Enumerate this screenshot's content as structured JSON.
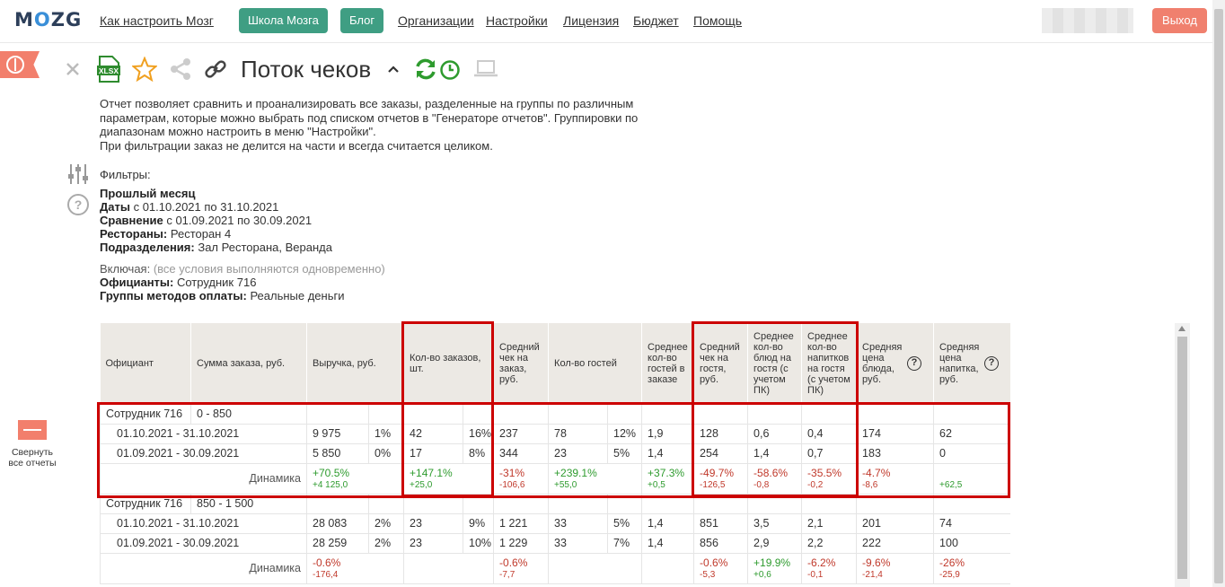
{
  "nav": {
    "logo": "MOZG",
    "links": [
      "Как настроить Мозг",
      "Организации",
      "Настройки",
      "Лицензия",
      "Бюджет",
      "Помощь"
    ],
    "btn_school": "Школа Мозга",
    "btn_blog": "Блог",
    "logout": "Выход"
  },
  "report": {
    "title": "Поток чеков",
    "xlsx": "XLSX",
    "description": [
      "Отчет позволяет сравнить и проанализировать все заказы, разделенные на группы по различным",
      "параметрам, которые можно выбрать под списком отчетов в \"Генераторе отчетов\". Группировки по",
      "диапазонам можно настроить в меню \"Настройки\".",
      "При фильтрации заказ не делится на части и всегда считается целиком."
    ]
  },
  "filters": {
    "label": "Фильтры:",
    "period": "Прошлый месяц",
    "dates_label": "Даты",
    "dates_value": "с 01.10.2021 по 31.10.2021",
    "compare_label": "Сравнение",
    "compare_value": "с 01.09.2021 по 30.09.2021",
    "restaurants_label": "Рестораны:",
    "restaurants_value": "Ресторан 4",
    "divisions_label": "Подразделения:",
    "divisions_value": "Зал Ресторана, Веранда",
    "include_label": "Включая:",
    "include_note": "(все условия выполняются одновременно)",
    "waiters_label": "Официанты:",
    "waiters_value": "Сотрудник 716",
    "payment_label": "Группы методов оплаты:",
    "payment_value": "Реальные деньги"
  },
  "collapse": {
    "label1": "Свернуть",
    "label2": "все отчеты"
  },
  "table": {
    "headers": {
      "waiter": "Официант",
      "order_sum": "Сумма заказа, руб.",
      "revenue": "Выручка, руб.",
      "orders": "Кол-во заказов, шт.",
      "avg_check": "Средний чек на заказ, руб.",
      "guests": "Кол-во гостей",
      "avg_guests": "Среднее кол-во гостей в заказе",
      "avg_guest_check": "Средний чек на гостя, руб.",
      "avg_dishes": "Среднее кол-во блюд на гостя (с учетом ПК)",
      "avg_drinks": "Среднее кол-во напитков на гостя (с учетом ПК)",
      "avg_dish_price": "Средняя цена блюда, руб.",
      "avg_drink_price": "Средняя цена напитка, руб."
    },
    "dyn_label": "Динамика",
    "groups": [
      {
        "waiter": "Сотрудник 716",
        "range": "0 - 850",
        "rows": [
          {
            "period": "01.10.2021 - 31.10.2021",
            "revenue": "9 975",
            "revenue_pct": "1%",
            "orders": "42",
            "orders_pct": "16%",
            "avg_check": "237",
            "guests": "78",
            "guests_pct": "12%",
            "avg_guests": "1,9",
            "avg_guest_check": "128",
            "avg_dishes": "0,6",
            "avg_drinks": "0,4",
            "avg_dish_price": "174",
            "avg_drink_price": "62"
          },
          {
            "period": "01.09.2021 - 30.09.2021",
            "revenue": "5 850",
            "revenue_pct": "0%",
            "orders": "17",
            "orders_pct": "8%",
            "avg_check": "344",
            "guests": "23",
            "guests_pct": "5%",
            "avg_guests": "1,4",
            "avg_guest_check": "254",
            "avg_dishes": "1,4",
            "avg_drinks": "0,7",
            "avg_dish_price": "183",
            "avg_drink_price": "0"
          }
        ],
        "dyn": {
          "revenue": [
            "+70.5%",
            "+4 125,0",
            "pos"
          ],
          "orders": [
            "+147.1%",
            "+25,0",
            "pos"
          ],
          "avg_check": [
            "-31%",
            "-106,6",
            "neg"
          ],
          "guests": [
            "+239.1%",
            "+55,0",
            "pos"
          ],
          "avg_guests": [
            "+37.3%",
            "+0,5",
            "pos"
          ],
          "avg_guest_check": [
            "-49.7%",
            "-126,5",
            "neg"
          ],
          "avg_dishes": [
            "-58.6%",
            "-0,8",
            "neg"
          ],
          "avg_drinks": [
            "-35.5%",
            "-0,2",
            "neg"
          ],
          "avg_dish_price": [
            "-4.7%",
            "-8,6",
            "neg"
          ],
          "avg_drink_price": [
            "",
            "+62,5",
            "pos"
          ]
        }
      },
      {
        "waiter": "Сотрудник 716",
        "range": "850 - 1 500",
        "rows": [
          {
            "period": "01.10.2021 - 31.10.2021",
            "revenue": "28 083",
            "revenue_pct": "2%",
            "orders": "23",
            "orders_pct": "9%",
            "avg_check": "1 221",
            "guests": "33",
            "guests_pct": "5%",
            "avg_guests": "1,4",
            "avg_guest_check": "851",
            "avg_dishes": "3,5",
            "avg_drinks": "2,1",
            "avg_dish_price": "201",
            "avg_drink_price": "74"
          },
          {
            "period": "01.09.2021 - 30.09.2021",
            "revenue": "28 259",
            "revenue_pct": "2%",
            "orders": "23",
            "orders_pct": "10%",
            "avg_check": "1 229",
            "guests": "33",
            "guests_pct": "7%",
            "avg_guests": "1,4",
            "avg_guest_check": "856",
            "avg_dishes": "2,9",
            "avg_drinks": "2,2",
            "avg_dish_price": "222",
            "avg_drink_price": "100"
          }
        ],
        "dyn": {
          "revenue": [
            "-0.6%",
            "-176,4",
            "neg"
          ],
          "orders": [
            "",
            "",
            ""
          ],
          "avg_check": [
            "-0.6%",
            "-7,7",
            "neg"
          ],
          "guests": [
            "",
            "",
            ""
          ],
          "avg_guests": [
            "",
            "",
            ""
          ],
          "avg_guest_check": [
            "-0.6%",
            "-5,3",
            "neg"
          ],
          "avg_dishes": [
            "+19.9%",
            "+0,6",
            "pos"
          ],
          "avg_drinks": [
            "-6.2%",
            "-0,1",
            "neg"
          ],
          "avg_dish_price": [
            "-9.6%",
            "-21,4",
            "neg"
          ],
          "avg_drink_price": [
            "-26%",
            "-25,9",
            "neg"
          ]
        }
      }
    ]
  },
  "colors": {
    "accent_green": "#3f9e83",
    "logout": "#f0806e",
    "highlight": "#cc0000",
    "positive": "#2e9b2e",
    "negative": "#c0392b"
  }
}
